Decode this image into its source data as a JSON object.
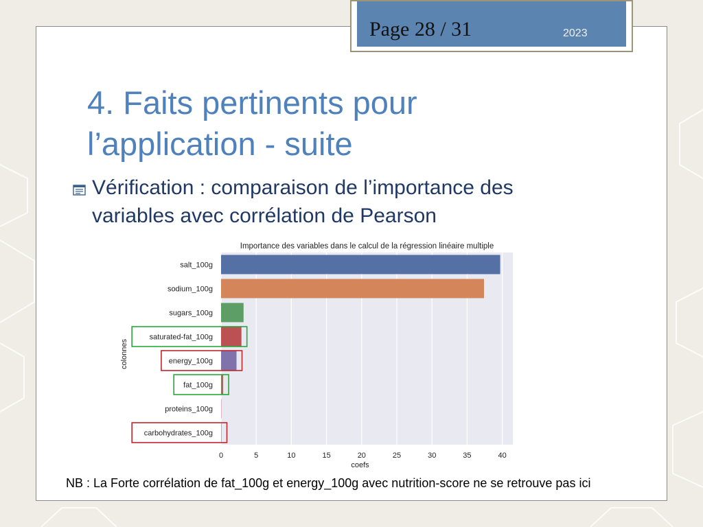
{
  "slide": {
    "page_label": "Page 28 / 31",
    "year": "2023",
    "title_line1": "4. Faits pertinents pour",
    "title_line2": "l’application - suite",
    "bullet_line1": "Vérification : comparaison de l’importance des",
    "bullet_line2": "variables avec corrélation de Pearson",
    "note": "NB : La Forte corrélation de fat_100g et energy_100g avec nutrition-score ne se retrouve pas ici",
    "bullet_icon": "note-icon"
  },
  "colors": {
    "accent": "#4f81bd",
    "page_box": "#5b84b1",
    "highlight_green": "#27a83a",
    "highlight_red": "#c0262c"
  },
  "chart_data": {
    "type": "bar",
    "orientation": "horizontal",
    "title": "Importance des variables dans le calcul de la régression linéaire multiple",
    "xlabel": "coefs",
    "ylabel": "colonnes",
    "categories": [
      "salt_100g",
      "sodium_100g",
      "sugars_100g",
      "saturated-fat_100g",
      "energy_100g",
      "fat_100g",
      "proteins_100g",
      "carbohydrates_100g"
    ],
    "values": [
      39.7,
      37.4,
      3.2,
      2.9,
      2.2,
      0.3,
      0.05,
      0.05
    ],
    "bar_colors": [
      "#5470a4",
      "#d4865a",
      "#5c9e66",
      "#bc5154",
      "#8073ab",
      "#93735e",
      "#d48fbf",
      "#8c8c8c"
    ],
    "xlim": [
      0,
      41.5
    ],
    "xticks": [
      0,
      5,
      10,
      15,
      20,
      25,
      30,
      35,
      40
    ],
    "grid": true,
    "plot_background": "#e9e9f2",
    "highlights": [
      {
        "category": "saturated-fat_100g",
        "color": "green"
      },
      {
        "category": "energy_100g",
        "color": "red"
      },
      {
        "category": "fat_100g",
        "color": "green"
      },
      {
        "category": "carbohydrates_100g",
        "color": "red"
      }
    ]
  }
}
